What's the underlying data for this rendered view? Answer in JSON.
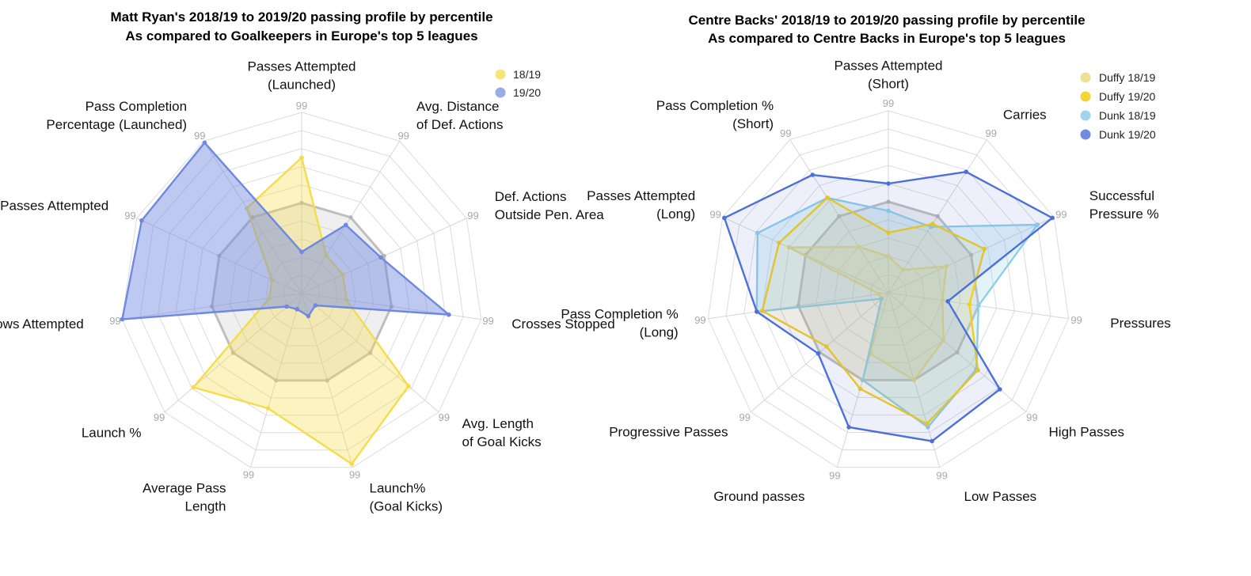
{
  "chart_data": [
    {
      "type": "radar",
      "title": "Matt Ryan's 2018/19 to 2019/20 passing profile by percentile",
      "subtitle": "As compared to Goalkeepers in Europe's top 5 leagues",
      "tick_label": "99",
      "rlim": [
        0,
        100
      ],
      "grid": true,
      "legend_position": "top-right",
      "axes": [
        "Passes Attempted\n(Launched)",
        "Avg. Distance\nof Def. Actions",
        "Def. Actions\nOutside Pen. Area",
        "Crosses Stopped",
        "Avg. Length\nof Goal Kicks",
        "Launch%\n(Goal Kicks)",
        "Average Pass\nLength",
        "Launch %",
        "Throws Attempted",
        "Passes Attempted",
        "Pass Completion\nPercentage (Launched)"
      ],
      "reference": {
        "values": [
          50,
          50,
          50,
          50,
          50,
          50,
          50,
          50,
          50,
          50,
          50
        ],
        "color": "#b4b4b4"
      },
      "series": [
        {
          "name": "18/19",
          "color": "#f5dc4a",
          "fill_opacity": 0.35,
          "values": [
            75,
            25,
            25,
            25,
            78,
            98,
            66,
            79,
            18,
            18,
            56
          ]
        },
        {
          "name": "19/20",
          "color": "#6f88e0",
          "fill_opacity": 0.45,
          "values": [
            23,
            45,
            48,
            82,
            10,
            13,
            9,
            11,
            100,
            97,
            99
          ]
        }
      ]
    },
    {
      "type": "radar",
      "title": "Centre Backs' 2018/19 to 2019/20 passing profile by percentile",
      "subtitle": "As compared to Centre Backs in Europe's top 5 leagues",
      "tick_label": "99",
      "rlim": [
        0,
        100
      ],
      "grid": true,
      "legend_position": "top-right",
      "axes": [
        "Passes Attempted\n(Short)",
        "Carries",
        "Successful\nPressure %",
        "Pressures",
        "High Passes",
        "Low Passes",
        "Ground passes",
        "Progressive Passes",
        "Pass Completion %\n(Long)",
        "Passes Attempted\n(Long)",
        "Pass Completion %\n(Short)"
      ],
      "reference": {
        "values": [
          50,
          50,
          50,
          50,
          50,
          50,
          50,
          50,
          50,
          50,
          50
        ],
        "color": "#b4b4b4"
      },
      "series": [
        {
          "name": "Duffy 18/19",
          "color": "#ecd87a",
          "fill_opacity": 0.3,
          "values": [
            20,
            15,
            35,
            30,
            40,
            50,
            35,
            5,
            5,
            60,
            30
          ]
        },
        {
          "name": "Duffy 19/20",
          "color": "#f2cf1e",
          "fill_opacity": 0.1,
          "values": [
            33,
            45,
            58,
            45,
            65,
            75,
            55,
            45,
            70,
            66,
            62
          ]
        },
        {
          "name": "Dunk 18/19",
          "color": "#8ecfe8",
          "fill_opacity": 0.25,
          "values": [
            45,
            43,
            90,
            50,
            64,
            77,
            50,
            5,
            73,
            79,
            62
          ]
        },
        {
          "name": "Dunk 19/20",
          "color": "#4c6fd8",
          "fill_opacity": 0.1,
          "values": [
            60,
            79,
            99,
            33,
            81,
            85,
            77,
            51,
            73,
            99,
            77
          ]
        }
      ]
    }
  ]
}
